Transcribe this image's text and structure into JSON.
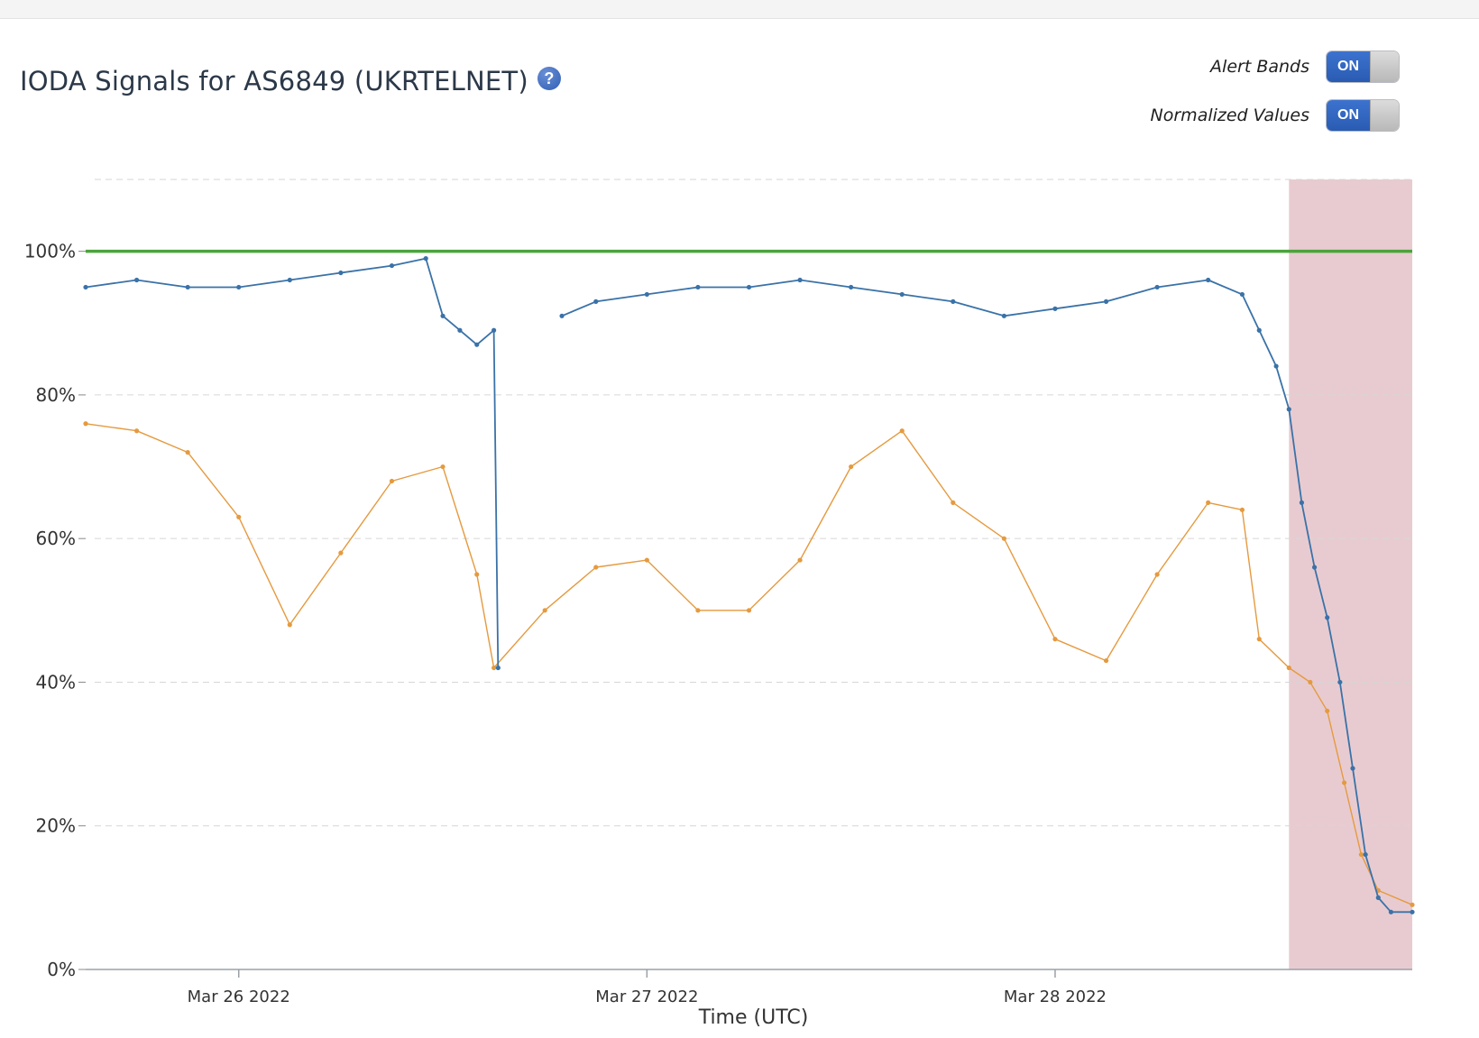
{
  "header": {
    "title": "IODA Signals for AS6849 (UKRTELNET)",
    "help_icon": "question-circle-icon"
  },
  "controls": {
    "alert_bands": {
      "label": "Alert Bands",
      "state": "ON"
    },
    "normalized_values": {
      "label": "Normalized Values",
      "state": "ON"
    }
  },
  "colors": {
    "bgp": "#4ba43b",
    "active_probing": "#3a72a8",
    "telescope": "#e59a3f",
    "alert_band": "#e8cbd0",
    "grid": "#d6d6d6"
  },
  "chart_data": {
    "type": "line",
    "title": "IODA Signals for AS6849 (UKRTELNET)",
    "xlabel": "Time (UTC)",
    "ylabel": "",
    "ylim": [
      0,
      110
    ],
    "x_range": [
      "2022-03-25T15:00",
      "2022-03-28T21:00"
    ],
    "x_ticks": [
      {
        "t": "2022-03-26T00:00",
        "label": "Mar 26 2022"
      },
      {
        "t": "2022-03-27T00:00",
        "label": "Mar 27 2022"
      },
      {
        "t": "2022-03-28T00:00",
        "label": "Mar 28 2022"
      }
    ],
    "y_ticks": [
      {
        "v": 0,
        "label": "0%"
      },
      {
        "v": 20,
        "label": "20%"
      },
      {
        "v": 40,
        "label": "40%"
      },
      {
        "v": 60,
        "label": "60%"
      },
      {
        "v": 80,
        "label": "80%"
      },
      {
        "v": 100,
        "label": "100%"
      }
    ],
    "grid": true,
    "legend": "none",
    "alert_band": {
      "start": "2022-03-28T13:45",
      "end": "2022-03-28T21:00"
    },
    "series": [
      {
        "signal": "bgp",
        "points": [
          [
            "2022-03-25T15:00",
            100
          ],
          [
            "2022-03-28T21:00",
            100
          ]
        ]
      },
      {
        "signal": "active_probing",
        "points": [
          [
            "2022-03-25T15:00",
            95
          ],
          [
            "2022-03-25T18:00",
            96
          ],
          [
            "2022-03-25T21:00",
            95
          ],
          [
            "2022-03-26T00:00",
            95
          ],
          [
            "2022-03-26T03:00",
            96
          ],
          [
            "2022-03-26T06:00",
            97
          ],
          [
            "2022-03-26T09:00",
            98
          ],
          [
            "2022-03-26T11:00",
            99
          ],
          [
            "2022-03-26T12:00",
            91
          ],
          [
            "2022-03-26T13:00",
            89
          ],
          [
            "2022-03-26T14:00",
            87
          ],
          [
            "2022-03-26T15:00",
            89
          ],
          [
            "2022-03-26T15:15",
            42
          ],
          null,
          [
            "2022-03-26T19:00",
            91
          ],
          [
            "2022-03-26T21:00",
            93
          ],
          [
            "2022-03-27T00:00",
            94
          ],
          [
            "2022-03-27T03:00",
            95
          ],
          [
            "2022-03-27T06:00",
            95
          ],
          [
            "2022-03-27T09:00",
            96
          ],
          [
            "2022-03-27T12:00",
            95
          ],
          [
            "2022-03-27T15:00",
            94
          ],
          [
            "2022-03-27T18:00",
            93
          ],
          [
            "2022-03-27T21:00",
            91
          ],
          [
            "2022-03-28T00:00",
            92
          ],
          [
            "2022-03-28T03:00",
            93
          ],
          [
            "2022-03-28T06:00",
            95
          ],
          [
            "2022-03-28T09:00",
            96
          ],
          [
            "2022-03-28T11:00",
            94
          ],
          [
            "2022-03-28T12:00",
            89
          ],
          [
            "2022-03-28T13:00",
            84
          ],
          [
            "2022-03-28T13:45",
            78
          ],
          [
            "2022-03-28T14:30",
            65
          ],
          [
            "2022-03-28T15:15",
            56
          ],
          [
            "2022-03-28T16:00",
            49
          ],
          [
            "2022-03-28T16:45",
            40
          ],
          [
            "2022-03-28T17:30",
            28
          ],
          [
            "2022-03-28T18:15",
            16
          ],
          [
            "2022-03-28T19:00",
            10
          ],
          [
            "2022-03-28T19:45",
            8
          ],
          [
            "2022-03-28T21:00",
            8
          ]
        ]
      },
      {
        "signal": "telescope",
        "points": [
          [
            "2022-03-25T15:00",
            76
          ],
          [
            "2022-03-25T18:00",
            75
          ],
          [
            "2022-03-25T21:00",
            72
          ],
          [
            "2022-03-26T00:00",
            63
          ],
          [
            "2022-03-26T03:00",
            48
          ],
          [
            "2022-03-26T06:00",
            58
          ],
          [
            "2022-03-26T09:00",
            68
          ],
          [
            "2022-03-26T12:00",
            70
          ],
          [
            "2022-03-26T14:00",
            55
          ],
          [
            "2022-03-26T15:00",
            42
          ],
          [
            "2022-03-26T18:00",
            50
          ],
          [
            "2022-03-26T21:00",
            56
          ],
          [
            "2022-03-27T00:00",
            57
          ],
          [
            "2022-03-27T03:00",
            50
          ],
          [
            "2022-03-27T06:00",
            50
          ],
          [
            "2022-03-27T09:00",
            57
          ],
          [
            "2022-03-27T12:00",
            70
          ],
          [
            "2022-03-27T15:00",
            75
          ],
          [
            "2022-03-27T18:00",
            65
          ],
          [
            "2022-03-27T21:00",
            60
          ],
          [
            "2022-03-28T00:00",
            46
          ],
          [
            "2022-03-28T03:00",
            43
          ],
          [
            "2022-03-28T06:00",
            55
          ],
          [
            "2022-03-28T09:00",
            65
          ],
          [
            "2022-03-28T11:00",
            64
          ],
          [
            "2022-03-28T12:00",
            46
          ],
          [
            "2022-03-28T13:45",
            42
          ],
          [
            "2022-03-28T15:00",
            40
          ],
          [
            "2022-03-28T16:00",
            36
          ],
          [
            "2022-03-28T17:00",
            26
          ],
          [
            "2022-03-28T18:00",
            16
          ],
          [
            "2022-03-28T19:00",
            11
          ],
          [
            "2022-03-28T21:00",
            9
          ]
        ]
      }
    ]
  }
}
